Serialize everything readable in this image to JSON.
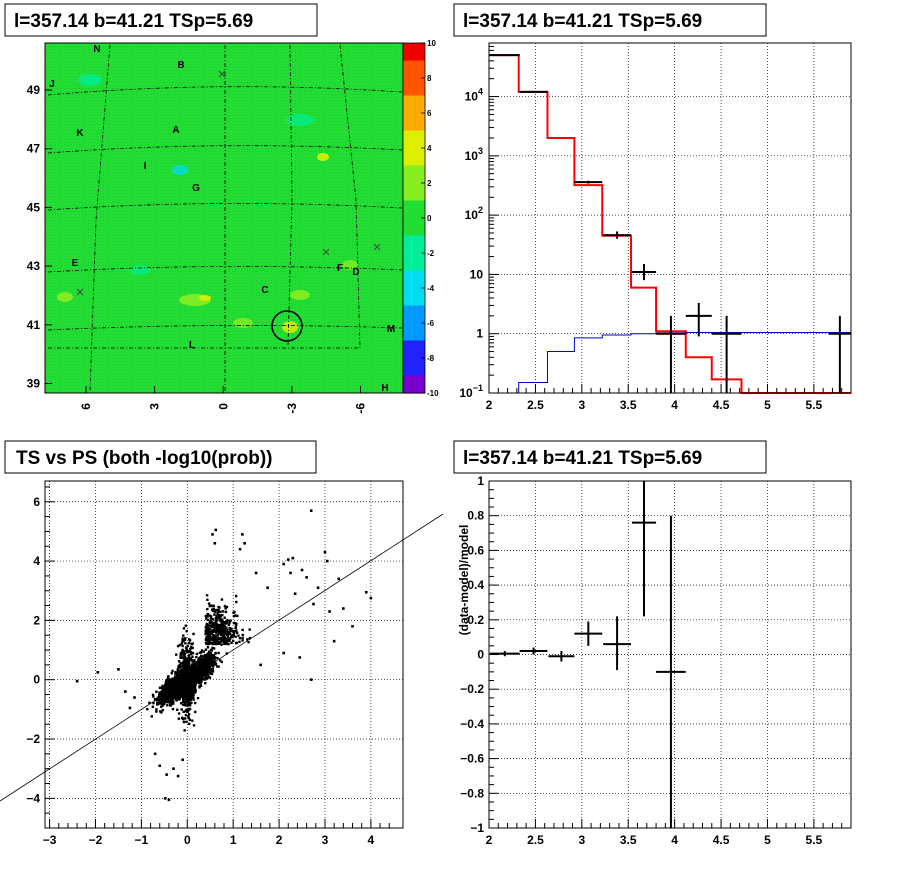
{
  "chart_data": [
    {
      "panel": "top-left",
      "type": "heatmap",
      "title": "l=357.14 b=41.21 TSp=5.69",
      "y_ticks": [
        "39",
        "41",
        "43",
        "45",
        "47",
        "49"
      ],
      "x_ticks": [
        "6",
        "3",
        "0",
        "-3",
        "-6"
      ],
      "colorbar_ticks": [
        "10",
        "8",
        "6",
        "4",
        "2",
        "0",
        "-2",
        "-4",
        "-6",
        "-8",
        "-10"
      ],
      "zlim": [
        -10,
        10
      ],
      "colors": {
        "background": "#22dd33",
        "scale": [
          "#7700cc",
          "#2222ff",
          "#0099ff",
          "#00ddee",
          "#00ee99",
          "#22dd33",
          "#88ee22",
          "#ddee00",
          "#ffaa00",
          "#ff5500",
          "#ee0000"
        ]
      },
      "source_labels": [
        "N",
        "B",
        "J",
        "A",
        "K",
        "I",
        "G",
        "E",
        "F",
        "D",
        "C",
        "M",
        "L",
        "H"
      ],
      "marker": "circle"
    },
    {
      "panel": "top-right",
      "type": "line",
      "title": "l=357.14 b=41.21 TSp=5.69",
      "xlim": [
        2,
        5.9
      ],
      "ylim": [
        0.1,
        80000
      ],
      "log_y": true,
      "x_ticks": [
        "2",
        "2.5",
        "3",
        "3.5",
        "4",
        "4.5",
        "5",
        "5.5"
      ],
      "y_ticks": [
        {
          "value": 0.1,
          "label": "10",
          "sup": "−1"
        },
        {
          "value": 1,
          "label": "1",
          "sup": ""
        },
        {
          "value": 10,
          "label": "10",
          "sup": ""
        },
        {
          "value": 100,
          "label": "10",
          "sup": "2"
        },
        {
          "value": 1000,
          "label": "10",
          "sup": "3"
        },
        {
          "value": 10000,
          "label": "10",
          "sup": "4"
        }
      ],
      "series": [
        {
          "color": "#ff0000",
          "edges": [
            2.0,
            2.32,
            2.63,
            2.92,
            3.22,
            3.53,
            3.8,
            4.12,
            4.4,
            4.72,
            5.9
          ],
          "values": [
            50000,
            12000,
            2000,
            320,
            45,
            6,
            1.1,
            0.4,
            0.17,
            0.1
          ]
        },
        {
          "color": "#0000cc",
          "edges": [
            2.0,
            2.1,
            2.32,
            2.63,
            2.92,
            3.22,
            3.53,
            3.8,
            4.12,
            4.4,
            4.72,
            5.9
          ],
          "values": [
            0.1,
            0.1,
            0.15,
            0.5,
            0.85,
            0.95,
            1.0,
            1.03,
            1.05,
            1.05,
            1.05
          ]
        }
      ],
      "points": [
        {
          "x": 2.17,
          "y": 50000,
          "xerr": 0.16,
          "ylo": 50000,
          "yhi": 50000
        },
        {
          "x": 2.48,
          "y": 12000,
          "xerr": 0.15,
          "ylo": 12000,
          "yhi": 12000
        },
        {
          "x": 3.07,
          "y": 360,
          "xerr": 0.15,
          "ylo": 340,
          "yhi": 380
        },
        {
          "x": 3.38,
          "y": 46,
          "xerr": 0.15,
          "ylo": 40,
          "yhi": 53
        },
        {
          "x": 3.67,
          "y": 11,
          "xerr": 0.13,
          "ylo": 8,
          "yhi": 15
        },
        {
          "x": 3.96,
          "y": 1,
          "xerr": 0.16,
          "ylo": 0.1,
          "yhi": 2
        },
        {
          "x": 4.26,
          "y": 2,
          "xerr": 0.14,
          "ylo": 0.9,
          "yhi": 3.3
        },
        {
          "x": 4.56,
          "y": 1,
          "xerr": 0.16,
          "ylo": 0.1,
          "yhi": 2
        },
        {
          "x": 5.78,
          "y": 1,
          "xerr": 0.12,
          "ylo": 0.1,
          "yhi": 2
        }
      ]
    },
    {
      "panel": "bottom-left",
      "type": "scatter",
      "title": "TS vs PS (both -log10(prob))",
      "xlim": [
        -3.1,
        4.7
      ],
      "ylim": [
        -5,
        6.7
      ],
      "x_ticks": [
        "−3",
        "−2",
        "−1",
        "0",
        "1",
        "2",
        "3",
        "4"
      ],
      "y_ticks": [
        "−4",
        "−2",
        "0",
        "2",
        "4",
        "6"
      ],
      "fit_line": {
        "slope": 0.98,
        "intercept": 0.1
      },
      "outliers": [
        [
          -2.4,
          -0.05
        ],
        [
          -1.95,
          0.25
        ],
        [
          -1.5,
          0.35
        ],
        [
          -1.35,
          -0.4
        ],
        [
          -1.25,
          -0.95
        ],
        [
          -1.15,
          -0.6
        ],
        [
          -0.7,
          -2.5
        ],
        [
          -0.6,
          -2.9
        ],
        [
          -0.45,
          -3.2
        ],
        [
          -0.48,
          -4.0
        ],
        [
          -0.4,
          -4.05
        ],
        [
          -0.3,
          -3.0
        ],
        [
          -0.2,
          -3.25
        ],
        [
          -0.1,
          -2.7
        ],
        [
          0.55,
          4.9
        ],
        [
          0.6,
          4.6
        ],
        [
          0.62,
          5.05
        ],
        [
          1.15,
          4.4
        ],
        [
          1.2,
          4.9
        ],
        [
          1.25,
          4.6
        ],
        [
          1.5,
          3.6
        ],
        [
          1.75,
          3.1
        ],
        [
          2.1,
          3.9
        ],
        [
          2.2,
          4.05
        ],
        [
          2.25,
          3.6
        ],
        [
          2.3,
          4.1
        ],
        [
          2.35,
          2.9
        ],
        [
          2.5,
          3.7
        ],
        [
          2.6,
          3.45
        ],
        [
          2.7,
          5.7
        ],
        [
          2.75,
          2.55
        ],
        [
          2.85,
          3.1
        ],
        [
          3.0,
          4.3
        ],
        [
          3.05,
          4.0
        ],
        [
          3.1,
          2.3
        ],
        [
          3.3,
          3.4
        ],
        [
          3.4,
          2.4
        ],
        [
          3.6,
          1.8
        ],
        [
          3.9,
          2.95
        ],
        [
          4.0,
          2.75
        ],
        [
          2.7,
          0.0
        ],
        [
          2.45,
          0.75
        ],
        [
          2.1,
          0.9
        ],
        [
          1.6,
          0.5
        ],
        [
          3.2,
          1.3
        ]
      ]
    },
    {
      "panel": "bottom-right",
      "type": "scatter",
      "title": "l=357.14 b=41.21 TSp=5.69",
      "ylabel": "(data-model)/model",
      "xlim": [
        2,
        5.9
      ],
      "ylim": [
        -1,
        1
      ],
      "x_ticks": [
        "2",
        "2.5",
        "3",
        "3.5",
        "4",
        "4.5",
        "5",
        "5.5"
      ],
      "y_ticks": [
        "−1",
        "−0.8",
        "−0.6",
        "−0.4",
        "−0.2",
        "0",
        "0.2",
        "0.4",
        "0.6",
        "0.8",
        "1"
      ],
      "points": [
        {
          "x": 2.17,
          "y": 0.005,
          "xerr": 0.16,
          "ylo": -0.01,
          "yhi": 0.02
        },
        {
          "x": 2.48,
          "y": 0.02,
          "xerr": 0.15,
          "ylo": 0.0,
          "yhi": 0.04
        },
        {
          "x": 2.78,
          "y": -0.01,
          "xerr": 0.14,
          "ylo": -0.04,
          "yhi": 0.02
        },
        {
          "x": 3.07,
          "y": 0.12,
          "xerr": 0.15,
          "ylo": 0.05,
          "yhi": 0.19
        },
        {
          "x": 3.38,
          "y": 0.06,
          "xerr": 0.15,
          "ylo": -0.09,
          "yhi": 0.22
        },
        {
          "x": 3.67,
          "y": 0.76,
          "xerr": 0.13,
          "ylo": 0.22,
          "yhi": 1.0
        },
        {
          "x": 3.96,
          "y": -0.1,
          "xerr": 0.16,
          "ylo": -1.0,
          "yhi": 0.8
        }
      ]
    }
  ]
}
